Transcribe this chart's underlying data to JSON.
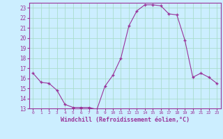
{
  "x": [
    0,
    1,
    2,
    3,
    4,
    5,
    6,
    7,
    8,
    9,
    10,
    11,
    12,
    13,
    14,
    15,
    16,
    17,
    18,
    19,
    20,
    21,
    22,
    23
  ],
  "y": [
    16.5,
    15.6,
    15.5,
    14.8,
    13.4,
    13.1,
    13.1,
    13.1,
    12.9,
    15.2,
    16.3,
    18.0,
    21.2,
    22.7,
    23.3,
    23.3,
    23.2,
    22.4,
    22.3,
    19.8,
    16.1,
    16.5,
    16.1,
    15.5
  ],
  "line_color": "#993399",
  "marker": "+",
  "bg_color": "#cceeff",
  "grid_color": "#aaddcc",
  "xlabel": "Windchill (Refroidissement éolien,°C)",
  "xlabel_color": "#993399",
  "tick_color": "#993399",
  "spine_color": "#993399",
  "ylim": [
    13,
    23.5
  ],
  "yticks": [
    13,
    14,
    15,
    16,
    17,
    18,
    19,
    20,
    21,
    22,
    23
  ],
  "xticks": [
    0,
    1,
    2,
    3,
    4,
    5,
    6,
    7,
    8,
    9,
    10,
    11,
    12,
    13,
    14,
    15,
    16,
    17,
    18,
    19,
    20,
    21,
    22,
    23
  ],
  "xlim": [
    -0.5,
    23.5
  ]
}
